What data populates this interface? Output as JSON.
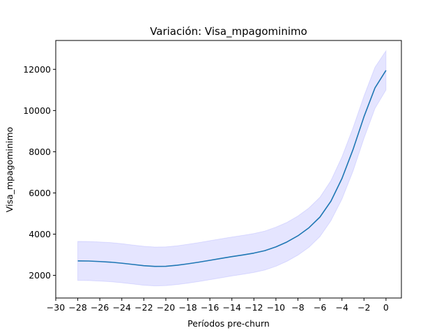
{
  "chart_data": {
    "type": "line",
    "title": "Variación: Visa_mpagominimo",
    "xlabel": "Períodos pre-churn",
    "ylabel": "Visa_mpagominimo",
    "xlim": [
      -30,
      1.4
    ],
    "ylim": [
      900,
      13400
    ],
    "grid": false,
    "x_ticks": [
      -30,
      -28,
      -26,
      -24,
      -22,
      -20,
      -18,
      -16,
      -14,
      -12,
      -10,
      -8,
      -6,
      -4,
      -2,
      0
    ],
    "x_tick_labels": [
      "−30",
      "−28",
      "−26",
      "−24",
      "−22",
      "−20",
      "−18",
      "−16",
      "−14",
      "−12",
      "−10",
      "−8",
      "−6",
      "−4",
      "−2",
      "0"
    ],
    "y_ticks": [
      2000,
      4000,
      6000,
      8000,
      10000,
      12000
    ],
    "y_tick_labels": [
      "2000",
      "4000",
      "6000",
      "8000",
      "10000",
      "12000"
    ],
    "x": [
      -28,
      -27,
      -26,
      -25,
      -24,
      -23,
      -22,
      -21,
      -20,
      -19,
      -18,
      -17,
      -16,
      -15,
      -14,
      -13,
      -12,
      -11,
      -10,
      -9,
      -8,
      -7,
      -6,
      -5,
      -4,
      -3,
      -2,
      -1,
      0
    ],
    "series": [
      {
        "values": [
          2700,
          2695,
          2670,
          2640,
          2590,
          2530,
          2470,
          2435,
          2440,
          2490,
          2560,
          2640,
          2730,
          2820,
          2910,
          2990,
          3080,
          3200,
          3380,
          3620,
          3920,
          4310,
          4830,
          5600,
          6700,
          8100,
          9700,
          11100,
          11950
        ],
        "upper": [
          3650,
          3645,
          3620,
          3590,
          3540,
          3470,
          3410,
          3375,
          3380,
          3430,
          3510,
          3590,
          3680,
          3770,
          3860,
          3940,
          4030,
          4150,
          4340,
          4570,
          4880,
          5270,
          5790,
          6600,
          7750,
          9150,
          10700,
          12100,
          12900
        ],
        "lower": [
          1750,
          1745,
          1720,
          1690,
          1640,
          1580,
          1520,
          1490,
          1500,
          1550,
          1620,
          1700,
          1790,
          1880,
          1970,
          2050,
          2140,
          2260,
          2440,
          2680,
          2980,
          3360,
          3880,
          4650,
          5700,
          7050,
          8650,
          10100,
          11000
        ],
        "color": "#1f77b4",
        "band_color": "#0000ff"
      }
    ]
  }
}
